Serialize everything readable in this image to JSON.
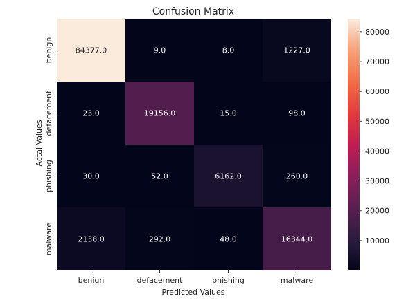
{
  "chart_data": {
    "type": "heatmap",
    "title": "Confusion Matrix",
    "xlabel": "Predicted Values",
    "ylabel": "Actal Values",
    "x_categories": [
      "benign",
      "defacement",
      "phishing",
      "malware"
    ],
    "y_categories": [
      "benign",
      "defacement",
      "phishing",
      "malware"
    ],
    "values": [
      [
        84377.0,
        9.0,
        8.0,
        1227.0
      ],
      [
        23.0,
        19156.0,
        15.0,
        98.0
      ],
      [
        30.0,
        52.0,
        6162.0,
        260.0
      ],
      [
        2138.0,
        292.0,
        48.0,
        16344.0
      ]
    ],
    "cell_labels": [
      [
        "84377.0",
        "9.0",
        "8.0",
        "1227.0"
      ],
      [
        "23.0",
        "19156.0",
        "15.0",
        "98.0"
      ],
      [
        "30.0",
        "52.0",
        "6162.0",
        "260.0"
      ],
      [
        "2138.0",
        "292.0",
        "48.0",
        "16344.0"
      ]
    ],
    "colorbar": {
      "colormap": "rocket",
      "range": [
        8.0,
        84377.0
      ],
      "ticks": [
        10000,
        20000,
        30000,
        40000,
        50000,
        60000,
        70000,
        80000
      ],
      "tick_labels": [
        "10000",
        "20000",
        "30000",
        "40000",
        "50000",
        "60000",
        "70000",
        "80000"
      ]
    }
  }
}
